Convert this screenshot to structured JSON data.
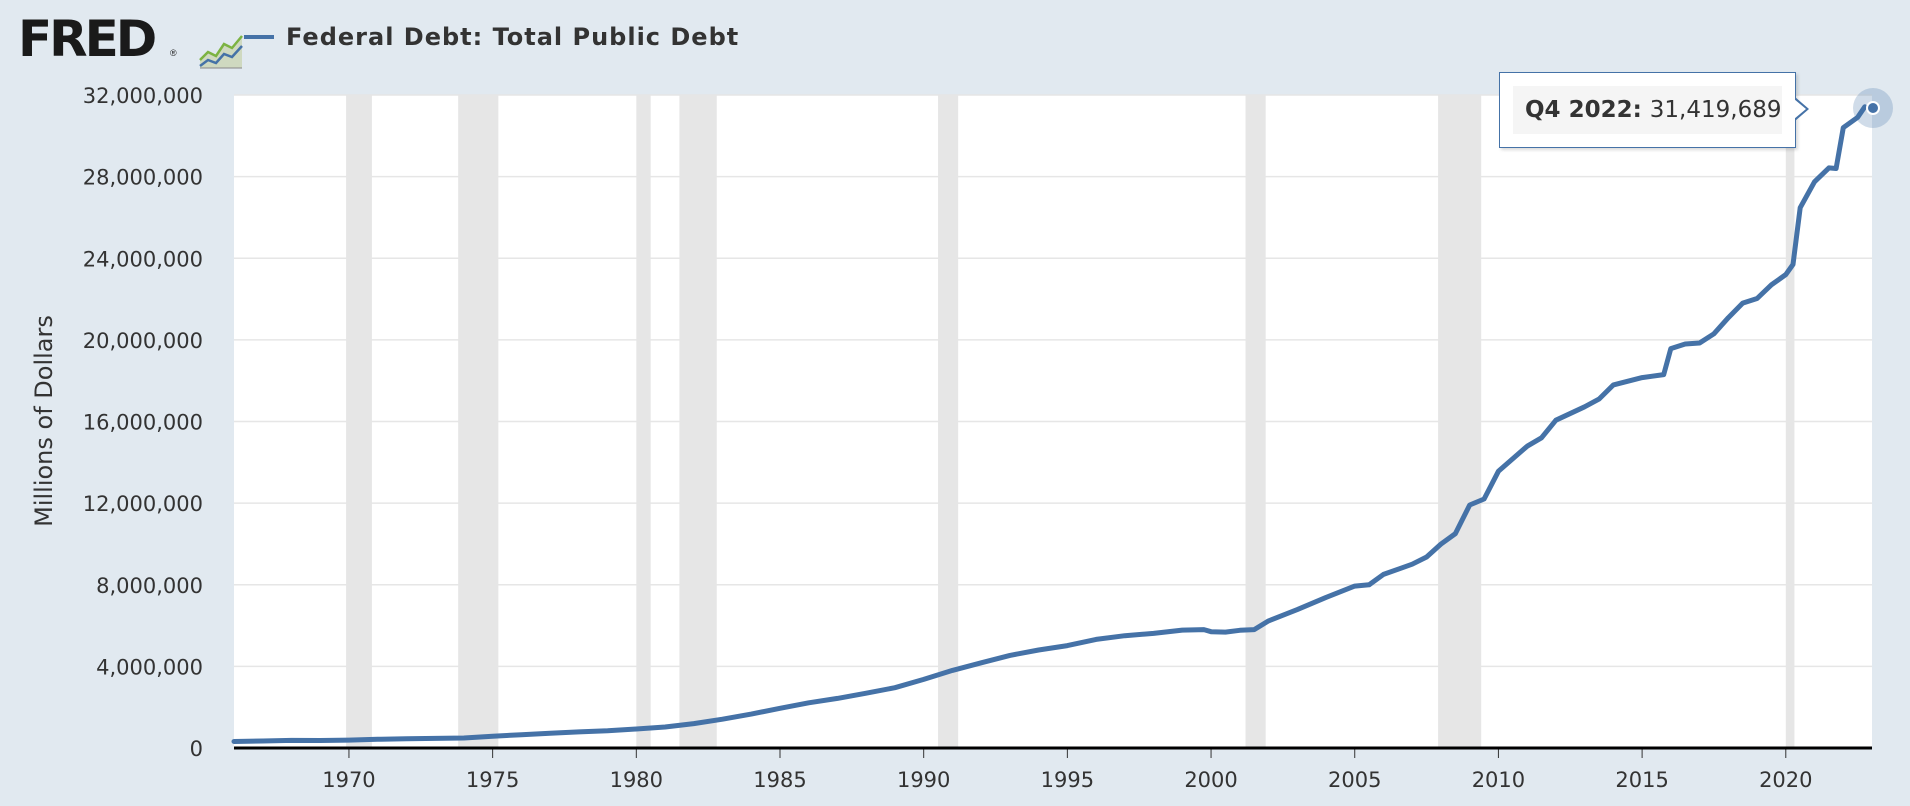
{
  "header": {
    "logo_text": "FRED",
    "logo_mark": "®",
    "logo_icon": "line-chart-icon",
    "legend_label": "Federal Debt: Total Public Debt"
  },
  "colors": {
    "series": "#4572a7",
    "background": "#e1e9f0",
    "plot": "#ffffff",
    "recession": "#e6e6e6",
    "grid": "#e6e6e6",
    "logo_green": "#7cb342"
  },
  "tooltip": {
    "period": "Q4 2022:",
    "value": "31,419,689"
  },
  "chart_data": {
    "type": "line",
    "title": "",
    "xlabel": "",
    "ylabel": "Millions of Dollars",
    "xlim": [
      1966.0,
      2023.0
    ],
    "ylim": [
      0,
      32000000
    ],
    "y_ticks": [
      0,
      4000000,
      8000000,
      12000000,
      16000000,
      20000000,
      24000000,
      28000000,
      32000000
    ],
    "y_tick_labels": [
      "0",
      "4,000,000",
      "8,000,000",
      "12,000,000",
      "16,000,000",
      "20,000,000",
      "24,000,000",
      "28,000,000",
      "32,000,000"
    ],
    "x_ticks": [
      1970,
      1975,
      1980,
      1985,
      1990,
      1995,
      2000,
      2005,
      2010,
      2015,
      2020
    ],
    "x_tick_labels": [
      "1970",
      "1975",
      "1980",
      "1985",
      "1990",
      "1995",
      "2000",
      "2005",
      "2010",
      "2015",
      "2020"
    ],
    "grid": "horizontal",
    "legend": "top-left",
    "recessions": [
      [
        1969.9,
        1970.8
      ],
      [
        1973.8,
        1975.2
      ],
      [
        1980.0,
        1980.5
      ],
      [
        1981.5,
        1982.8
      ],
      [
        1990.5,
        1991.2
      ],
      [
        2001.2,
        2001.9
      ],
      [
        2007.9,
        2009.4
      ],
      [
        2020.0,
        2020.3
      ]
    ],
    "series": [
      {
        "x": [
          1966.0,
          1967.0,
          1968.0,
          1969.0,
          1970.0,
          1971.0,
          1972.0,
          1973.0,
          1974.0,
          1975.0,
          1976.0,
          1977.0,
          1978.0,
          1979.0,
          1980.0,
          1981.0,
          1982.0,
          1983.0,
          1984.0,
          1985.0,
          1986.0,
          1987.0,
          1988.0,
          1989.0,
          1990.0,
          1991.0,
          1992.0,
          1993.0,
          1994.0,
          1995.0,
          1996.0,
          1997.0,
          1998.0,
          1999.0,
          1999.75,
          2000.0,
          2000.5,
          2001.0,
          2001.5,
          2002.0,
          2003.0,
          2004.0,
          2005.0,
          2005.5,
          2006.0,
          2007.0,
          2007.5,
          2008.0,
          2008.5,
          2009.0,
          2009.5,
          2010.0,
          2011.0,
          2011.5,
          2012.0,
          2013.0,
          2013.5,
          2014.0,
          2015.0,
          2015.75,
          2016.0,
          2016.5,
          2017.0,
          2017.5,
          2018.0,
          2018.5,
          2019.0,
          2019.5,
          2020.0,
          2020.25,
          2020.5,
          2021.0,
          2021.5,
          2021.75,
          2022.0,
          2022.5,
          2022.75
        ],
        "values": [
          320000,
          341000,
          370000,
          368000,
          389000,
          424000,
          450000,
          469000,
          492000,
          576000,
          653000,
          718000,
          789000,
          845000,
          930000,
          1028000,
          1197000,
          1410000,
          1663000,
          1945000,
          2214000,
          2431000,
          2684000,
          2953000,
          3364000,
          3802000,
          4177000,
          4536000,
          4801000,
          5017000,
          5323000,
          5502000,
          5614000,
          5776000,
          5800000,
          5700000,
          5680000,
          5770000,
          5800000,
          6228000,
          6783000,
          7379000,
          7932000,
          8000000,
          8507000,
          9008000,
          9360000,
          9990000,
          10500000,
          11910000,
          12200000,
          13562000,
          14790000,
          15200000,
          16066000,
          16719000,
          17100000,
          17794000,
          18150000,
          18300000,
          19573000,
          19800000,
          19845000,
          20300000,
          21089000,
          21800000,
          22028000,
          22700000,
          23201000,
          23700000,
          26477000,
          27748000,
          28428000,
          28400000,
          30400000,
          30900000,
          31419689
        ]
      }
    ]
  }
}
